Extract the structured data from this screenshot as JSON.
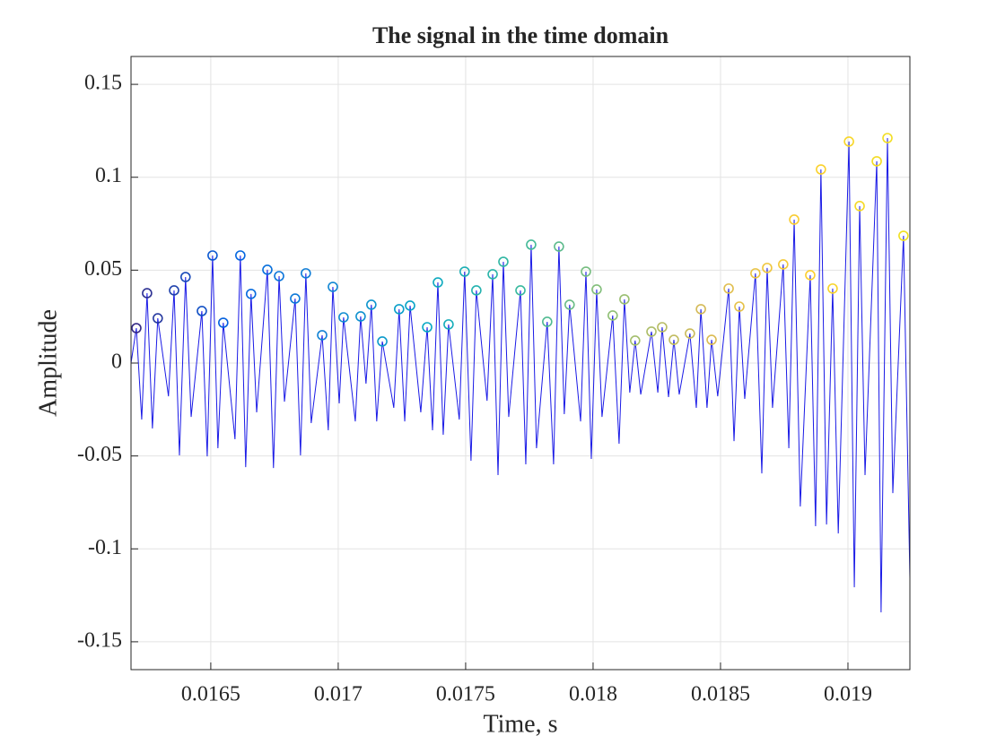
{
  "chart_data": {
    "type": "line",
    "title": "The signal in the time domain",
    "x_label": "Time, s",
    "y_label": "Amplitude",
    "xlim": [
      0.016187,
      0.019243
    ],
    "ylim": [
      -0.165,
      0.165
    ],
    "xticks": [
      0.0165,
      0.017,
      0.0175,
      0.018,
      0.0185,
      0.019
    ],
    "yticks": [
      -0.15,
      -0.1,
      -0.05,
      0,
      0.05,
      0.1,
      0.15
    ],
    "grid": true,
    "series": [
      {
        "color": "#1a1ae6",
        "style": "line",
        "x": [
          0.016187,
          0.016208,
          0.016229,
          0.01625,
          0.016271,
          0.016292,
          0.016334,
          0.016356,
          0.016377,
          0.016401,
          0.016423,
          0.016465,
          0.016486,
          0.016507,
          0.016528,
          0.016549,
          0.016595,
          0.016616,
          0.016637,
          0.016658,
          0.01668,
          0.016722,
          0.016746,
          0.016768,
          0.016789,
          0.016831,
          0.016852,
          0.016873,
          0.016894,
          0.016937,
          0.016961,
          0.016979,
          0.017004,
          0.017021,
          0.017067,
          0.017088,
          0.017109,
          0.01713,
          0.017151,
          0.017173,
          0.017218,
          0.017239,
          0.017261,
          0.017282,
          0.017324,
          0.017349,
          0.01737,
          0.017391,
          0.017412,
          0.017433,
          0.017475,
          0.017496,
          0.017521,
          0.017542,
          0.017584,
          0.017606,
          0.017627,
          0.017648,
          0.017669,
          0.017715,
          0.017736,
          0.017757,
          0.017778,
          0.01782,
          0.017845,
          0.017866,
          0.017887,
          0.017908,
          0.017951,
          0.017972,
          0.017993,
          0.018014,
          0.018035,
          0.018077,
          0.018102,
          0.018123,
          0.018144,
          0.018165,
          0.018187,
          0.018229,
          0.018254,
          0.018271,
          0.018296,
          0.018317,
          0.018338,
          0.01838,
          0.018405,
          0.018423,
          0.018447,
          0.018465,
          0.018489,
          0.018532,
          0.018553,
          0.018574,
          0.018595,
          0.018637,
          0.018662,
          0.018683,
          0.018704,
          0.018746,
          0.018768,
          0.018789,
          0.018813,
          0.018852,
          0.018873,
          0.018894,
          0.018916,
          0.01894,
          0.018962,
          0.019004,
          0.019025,
          0.019046,
          0.019067,
          0.019113,
          0.01913,
          0.019155,
          0.019176,
          0.019218,
          0.019243
        ],
        "values": [
          0.0,
          0.0188,
          -0.0304,
          0.0376,
          -0.0352,
          0.0241,
          -0.0179,
          0.0391,
          -0.0497,
          0.0463,
          -0.029,
          0.028,
          -0.0502,
          0.0579,
          -0.0458,
          0.0217,
          -0.041,
          0.0579,
          -0.056,
          0.0372,
          -0.0265,
          0.0502,
          -0.0565,
          0.0468,
          -0.0208,
          0.0347,
          -0.0497,
          0.0483,
          -0.0323,
          0.015,
          -0.0362,
          0.041,
          -0.0217,
          0.0246,
          -0.0314,
          0.0251,
          -0.0111,
          0.0314,
          -0.0314,
          0.0116,
          -0.0241,
          0.029,
          -0.0314,
          0.0309,
          -0.0265,
          0.0193,
          -0.0362,
          0.0434,
          -0.0386,
          0.0208,
          -0.0304,
          0.0492,
          -0.0526,
          0.0391,
          -0.0203,
          0.0478,
          -0.0603,
          0.0545,
          -0.029,
          0.0391,
          -0.0545,
          0.0637,
          -0.0458,
          0.0222,
          -0.0545,
          0.0627,
          -0.0275,
          0.0314,
          -0.0314,
          0.0492,
          -0.0516,
          0.0396,
          -0.029,
          0.0256,
          -0.0434,
          0.0343,
          -0.0159,
          0.0121,
          -0.0169,
          0.0169,
          -0.0159,
          0.0193,
          -0.0183,
          0.0125,
          -0.0169,
          0.0159,
          -0.0241,
          0.029,
          -0.0241,
          0.0125,
          -0.0179,
          0.0401,
          -0.042,
          0.0304,
          -0.0193,
          0.0483,
          -0.0594,
          0.0512,
          -0.0241,
          0.0531,
          -0.0458,
          0.0772,
          -0.0772,
          0.0473,
          -0.0878,
          0.1042,
          -0.0869,
          0.0401,
          -0.0917,
          0.1192,
          -0.1207,
          0.0845,
          -0.0603,
          0.1086,
          -0.1342,
          0.1211,
          -0.07,
          0.0685,
          -0.1158
        ]
      },
      {
        "style": "markers",
        "colormap": [
          "#352a87",
          "#0363e1",
          "#1485d4",
          "#06a7c6",
          "#38b99e",
          "#92bf73",
          "#d9ba56",
          "#fcce2e",
          "#f0e020"
        ],
        "x": [
          0.016208,
          0.01625,
          0.016292,
          0.016356,
          0.016401,
          0.016465,
          0.016507,
          0.016549,
          0.016616,
          0.016658,
          0.016722,
          0.016768,
          0.016831,
          0.016873,
          0.016937,
          0.016979,
          0.017021,
          0.017088,
          0.01713,
          0.017173,
          0.017239,
          0.017282,
          0.017349,
          0.017391,
          0.017433,
          0.017496,
          0.017542,
          0.017606,
          0.017648,
          0.017715,
          0.017757,
          0.01782,
          0.017866,
          0.017908,
          0.017972,
          0.018014,
          0.018077,
          0.018123,
          0.018165,
          0.018229,
          0.018271,
          0.018317,
          0.01838,
          0.018423,
          0.018465,
          0.018532,
          0.018574,
          0.018637,
          0.018683,
          0.018746,
          0.018789,
          0.018852,
          0.018894,
          0.01894,
          0.019004,
          0.019046,
          0.019113,
          0.019155,
          0.019218
        ],
        "values": [
          0.0188,
          0.0376,
          0.0241,
          0.0391,
          0.0463,
          0.028,
          0.0579,
          0.0217,
          0.0579,
          0.0372,
          0.0502,
          0.0468,
          0.0347,
          0.0483,
          0.015,
          0.041,
          0.0246,
          0.0251,
          0.0314,
          0.0116,
          0.029,
          0.0309,
          0.0193,
          0.0434,
          0.0208,
          0.0492,
          0.0391,
          0.0478,
          0.0545,
          0.0391,
          0.0637,
          0.0222,
          0.0627,
          0.0314,
          0.0492,
          0.0396,
          0.0256,
          0.0343,
          0.0121,
          0.0169,
          0.0193,
          0.0125,
          0.0159,
          0.029,
          0.0125,
          0.0401,
          0.0304,
          0.0483,
          0.0512,
          0.0531,
          0.0772,
          0.0473,
          0.1042,
          0.0401,
          0.1192,
          0.0845,
          0.1086,
          0.1211,
          0.0685
        ]
      }
    ]
  }
}
